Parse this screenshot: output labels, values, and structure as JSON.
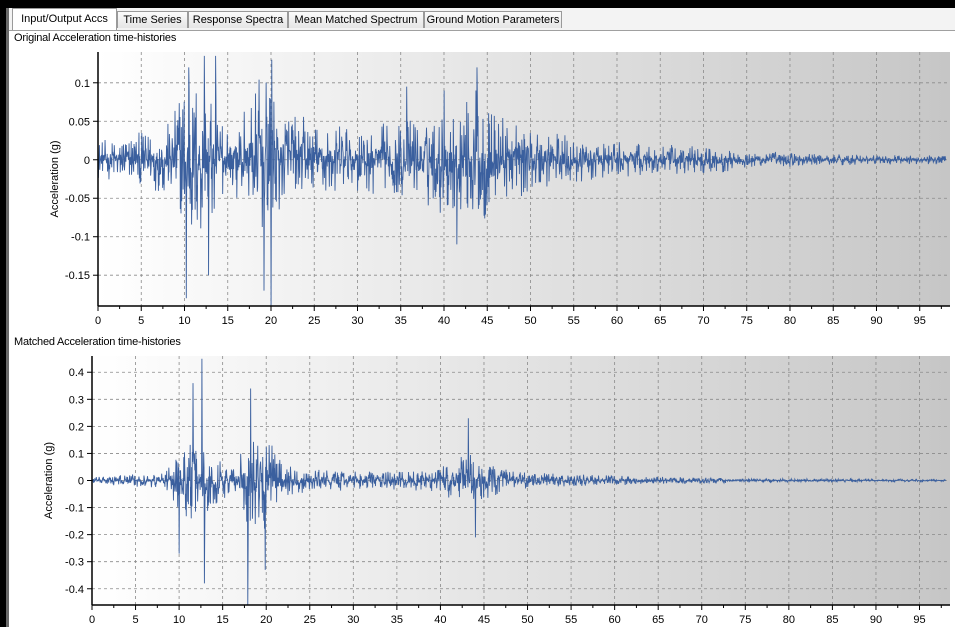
{
  "tabs": [
    {
      "label": "Input/Output Accs",
      "active": true
    },
    {
      "label": "Time Series",
      "active": false
    },
    {
      "label": "Response Spectra",
      "active": false
    },
    {
      "label": "Mean Matched Spectrum",
      "active": false
    },
    {
      "label": "Ground Motion Parameters",
      "active": false
    }
  ],
  "colors": {
    "series": "#3a5f9e",
    "plot_gradient_start": "#ffffff",
    "plot_gradient_end": "#c6c6c6",
    "grid": "#8a8a8a"
  },
  "chart_data": [
    {
      "type": "line",
      "title": "Original Acceleration time-histories",
      "ylabel": "Acceleration (g)",
      "xlabel": "",
      "xlim": [
        0,
        98.5
      ],
      "ylim": [
        -0.19,
        0.14
      ],
      "xticks": [
        0,
        5,
        10,
        15,
        20,
        25,
        30,
        35,
        40,
        45,
        50,
        55,
        60,
        65,
        70,
        75,
        80,
        85,
        90,
        95
      ],
      "yticks": [
        0.1,
        0.05,
        0,
        -0.05,
        -0.1,
        -0.15
      ],
      "ytick_labels": [
        "0.1",
        "0.05",
        "0",
        "-0.05",
        "-0.1",
        "-0.15"
      ],
      "grid": true,
      "series": [
        {
          "envelope_t": [
            0,
            5,
            8,
            10,
            12,
            14,
            16,
            19,
            21,
            25,
            30,
            35,
            40,
            44,
            46,
            50,
            55,
            60,
            65,
            70,
            75,
            80,
            85,
            90,
            95,
            98
          ],
          "envelope_amp": [
            0.03,
            0.045,
            0.06,
            0.12,
            0.13,
            0.08,
            0.07,
            0.14,
            0.09,
            0.06,
            0.06,
            0.06,
            0.09,
            0.12,
            0.08,
            0.055,
            0.04,
            0.03,
            0.025,
            0.025,
            0.015,
            0.012,
            0.01,
            0.008,
            0.008,
            0.008
          ],
          "peaks": [
            {
              "t": 10.2,
              "v": -0.18
            },
            {
              "t": 10.5,
              "v": 0.12
            },
            {
              "t": 12.3,
              "v": 0.135
            },
            {
              "t": 13.6,
              "v": 0.135
            },
            {
              "t": 12.8,
              "v": -0.15
            },
            {
              "t": 19.2,
              "v": -0.17
            },
            {
              "t": 20.0,
              "v": -0.19
            },
            {
              "t": 20.1,
              "v": 0.13
            },
            {
              "t": 40.0,
              "v": 0.09
            },
            {
              "t": 43.8,
              "v": 0.12
            },
            {
              "t": 41.5,
              "v": -0.11
            },
            {
              "t": 35.7,
              "v": 0.095
            }
          ]
        }
      ]
    },
    {
      "type": "line",
      "title": "Matched Acceleration time-histories",
      "ylabel": "Acceleration (g)",
      "xlabel": "",
      "xlim": [
        0,
        98.5
      ],
      "ylim": [
        -0.46,
        0.46
      ],
      "xticks": [
        0,
        5,
        10,
        15,
        20,
        25,
        30,
        35,
        40,
        45,
        50,
        55,
        60,
        65,
        70,
        75,
        80,
        85,
        90,
        95
      ],
      "yticks": [
        0.4,
        0.3,
        0.2,
        0.1,
        0,
        -0.1,
        -0.2,
        -0.3,
        -0.4
      ],
      "ytick_labels": [
        "0.4",
        "0.3",
        "0.2",
        "0.1",
        "0",
        "-0.1",
        "-0.2",
        "-0.3",
        "-0.4"
      ],
      "grid": true,
      "series": [
        {
          "envelope_t": [
            0,
            5,
            8,
            10,
            12,
            14,
            16,
            18,
            20,
            22,
            25,
            30,
            35,
            40,
            43,
            45,
            48,
            50,
            55,
            60,
            65,
            70,
            75,
            80,
            85,
            90,
            95,
            98
          ],
          "envelope_amp": [
            0.02,
            0.04,
            0.05,
            0.18,
            0.28,
            0.15,
            0.1,
            0.32,
            0.3,
            0.1,
            0.07,
            0.06,
            0.06,
            0.08,
            0.2,
            0.12,
            0.06,
            0.05,
            0.04,
            0.03,
            0.025,
            0.02,
            0.012,
            0.012,
            0.01,
            0.008,
            0.008,
            0.008
          ],
          "peaks": [
            {
              "t": 12.6,
              "v": 0.45
            },
            {
              "t": 12.9,
              "v": -0.38
            },
            {
              "t": 17.9,
              "v": -0.46
            },
            {
              "t": 18.2,
              "v": 0.34
            },
            {
              "t": 19.9,
              "v": -0.33
            },
            {
              "t": 11.6,
              "v": 0.36
            },
            {
              "t": 43.2,
              "v": 0.23
            },
            {
              "t": 44.0,
              "v": -0.21
            },
            {
              "t": 10.0,
              "v": -0.27
            }
          ]
        }
      ]
    }
  ]
}
